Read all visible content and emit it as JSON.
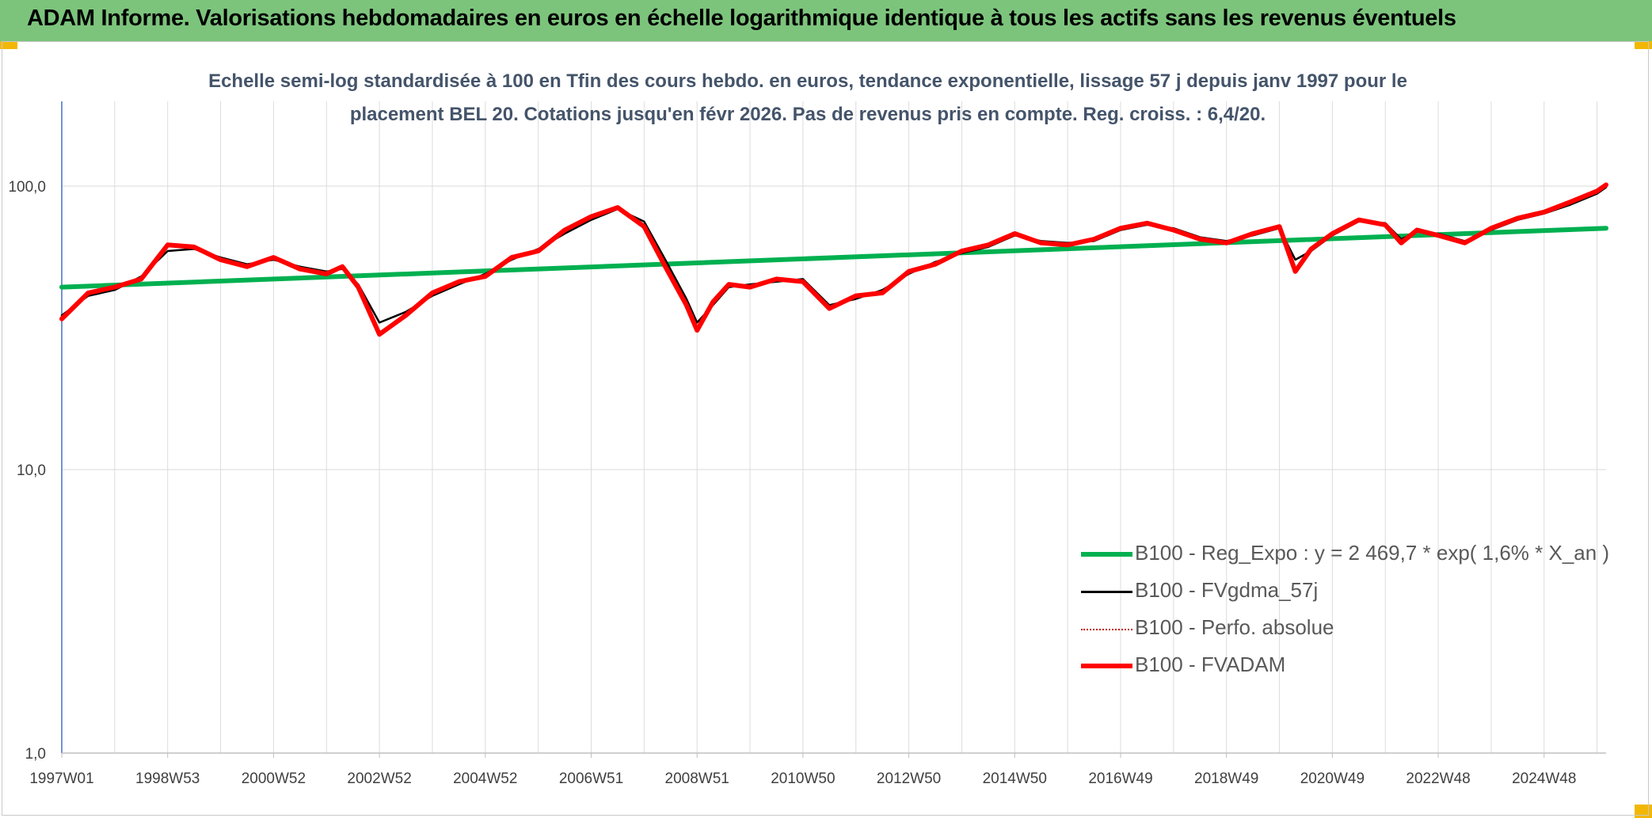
{
  "header": {
    "title": "ADAM Informe. Valorisations hebdomadaires en euros en échelle logarithmique identique à tous les actifs sans les revenus éventuels"
  },
  "chart_data": {
    "type": "line",
    "title_line1": "Echelle semi-log standardisée à 100 en Tfin des cours hebdo. en euros, tendance exponentielle, lissage 57 j depuis janv 1997 pour le",
    "title_line2": "placement BEL 20. Cotations jusqu'en févr 2026. Pas de revenus pris en compte. Reg. croiss. : 6,4/20.",
    "y_scale": "log",
    "ylim": [
      1,
      200
    ],
    "y_ticks": [
      {
        "value": 1,
        "label": "1,0"
      },
      {
        "value": 10,
        "label": "10,0"
      },
      {
        "value": 100,
        "label": "100,0"
      }
    ],
    "xlim": [
      1997.0,
      2026.17
    ],
    "x_ticks": [
      {
        "value": 1997.0,
        "label": "1997W01"
      },
      {
        "value": 1999.0,
        "label": "1998W53"
      },
      {
        "value": 2001.0,
        "label": "2000W52"
      },
      {
        "value": 2003.0,
        "label": "2002W52"
      },
      {
        "value": 2005.0,
        "label": "2004W52"
      },
      {
        "value": 2007.0,
        "label": "2006W51"
      },
      {
        "value": 2009.0,
        "label": "2008W51"
      },
      {
        "value": 2011.0,
        "label": "2010W50"
      },
      {
        "value": 2013.0,
        "label": "2012W50"
      },
      {
        "value": 2015.0,
        "label": "2014W50"
      },
      {
        "value": 2017.0,
        "label": "2016W49"
      },
      {
        "value": 2019.0,
        "label": "2018W49"
      },
      {
        "value": 2021.0,
        "label": "2020W49"
      },
      {
        "value": 2023.0,
        "label": "2022W48"
      },
      {
        "value": 2025.0,
        "label": "2024W48"
      }
    ],
    "grid": true,
    "legend_placement": "bottom-right",
    "series": [
      {
        "name": "B100 - Reg_Expo : y = 2 469,7 * exp( 1,6% *  X_an )",
        "color": "#00b050",
        "style": "solid-thick",
        "x": [
          1997.0,
          2026.17
        ],
        "y": [
          44,
          71
        ]
      },
      {
        "name": "B100 - FVgdma_57j",
        "color": "#000000",
        "style": "solid-thin",
        "x": [
          1997.0,
          1997.5,
          1998.0,
          1998.5,
          1999.0,
          1999.5,
          2000.0,
          2000.5,
          2001.0,
          2001.5,
          2002.0,
          2002.3,
          2002.6,
          2003.0,
          2003.5,
          2004.0,
          2004.5,
          2005.0,
          2005.5,
          2006.0,
          2006.5,
          2007.0,
          2007.5,
          2008.0,
          2008.4,
          2008.8,
          2009.0,
          2009.3,
          2009.6,
          2010.0,
          2010.5,
          2011.0,
          2011.5,
          2012.0,
          2012.5,
          2013.0,
          2013.5,
          2014.0,
          2014.5,
          2015.0,
          2015.5,
          2016.0,
          2016.5,
          2017.0,
          2017.5,
          2018.0,
          2018.5,
          2019.0,
          2019.5,
          2020.0,
          2020.3,
          2020.6,
          2021.0,
          2021.5,
          2022.0,
          2022.3,
          2022.6,
          2023.0,
          2023.5,
          2024.0,
          2024.5,
          2025.0,
          2025.5,
          2026.0,
          2026.17
        ],
        "y": [
          35,
          41,
          43,
          48,
          59,
          60,
          56,
          53,
          55,
          52,
          50,
          51,
          45,
          33,
          36,
          41,
          45,
          49,
          55,
          60,
          68,
          76,
          83,
          75,
          55,
          40,
          33,
          38,
          44,
          45,
          46,
          47,
          38,
          40,
          43,
          49,
          54,
          58,
          61,
          67,
          64,
          63,
          64,
          70,
          73,
          71,
          66,
          64,
          67,
          71,
          55,
          59,
          67,
          75,
          74,
          65,
          69,
          68,
          64,
          70,
          76,
          80,
          86,
          94,
          99
        ]
      },
      {
        "name": "B100 - Perfo. absolue",
        "color": "#c00000",
        "style": "dotted",
        "x": [
          1997.0,
          1997.5,
          1998.0,
          1998.5,
          1999.0,
          1999.5,
          2000.0,
          2000.5,
          2001.0,
          2001.5,
          2002.0,
          2002.3,
          2002.6,
          2003.0,
          2003.5,
          2004.0,
          2004.5,
          2005.0,
          2005.5,
          2006.0,
          2006.5,
          2007.0,
          2007.5,
          2008.0,
          2008.4,
          2008.8,
          2009.0,
          2009.3,
          2009.6,
          2010.0,
          2010.5,
          2011.0,
          2011.5,
          2012.0,
          2012.5,
          2013.0,
          2013.5,
          2014.0,
          2014.5,
          2015.0,
          2015.5,
          2016.0,
          2016.5,
          2017.0,
          2017.5,
          2018.0,
          2018.5,
          2019.0,
          2019.5,
          2020.0,
          2020.3,
          2020.6,
          2021.0,
          2021.5,
          2022.0,
          2022.3,
          2022.6,
          2023.0,
          2023.5,
          2024.0,
          2024.5,
          2025.0,
          2025.5,
          2026.0,
          2026.17
        ],
        "y": [
          34,
          42,
          44,
          47,
          62,
          61,
          55,
          52,
          56,
          51,
          49,
          52,
          44,
          30,
          35,
          42,
          46,
          48,
          56,
          59,
          70,
          78,
          84,
          72,
          52,
          38,
          31,
          39,
          45,
          44,
          47,
          46,
          37,
          41,
          42,
          50,
          53,
          59,
          62,
          68,
          63,
          62,
          65,
          71,
          74,
          70,
          65,
          63,
          68,
          72,
          50,
          60,
          68,
          76,
          73,
          63,
          70,
          67,
          63,
          71,
          77,
          81,
          88,
          96,
          101
        ]
      },
      {
        "name": "B100 - FVADAM",
        "color": "#ff0000",
        "style": "solid-thick",
        "x": [
          1997.0,
          1997.5,
          1998.0,
          1998.5,
          1999.0,
          1999.5,
          2000.0,
          2000.5,
          2001.0,
          2001.5,
          2002.0,
          2002.3,
          2002.6,
          2003.0,
          2003.5,
          2004.0,
          2004.5,
          2005.0,
          2005.5,
          2006.0,
          2006.5,
          2007.0,
          2007.5,
          2008.0,
          2008.4,
          2008.8,
          2009.0,
          2009.3,
          2009.6,
          2010.0,
          2010.5,
          2011.0,
          2011.5,
          2012.0,
          2012.5,
          2013.0,
          2013.5,
          2014.0,
          2014.5,
          2015.0,
          2015.5,
          2016.0,
          2016.5,
          2017.0,
          2017.5,
          2018.0,
          2018.5,
          2019.0,
          2019.5,
          2020.0,
          2020.3,
          2020.6,
          2021.0,
          2021.5,
          2022.0,
          2022.3,
          2022.6,
          2023.0,
          2023.5,
          2024.0,
          2024.5,
          2025.0,
          2025.5,
          2026.0,
          2026.17
        ],
        "y": [
          34,
          42,
          44,
          47,
          62,
          61,
          55,
          52,
          56,
          51,
          49,
          52,
          44,
          30,
          35,
          42,
          46,
          48,
          56,
          59,
          70,
          78,
          84,
          72,
          52,
          38,
          31,
          39,
          45,
          44,
          47,
          46,
          37,
          41,
          42,
          50,
          53,
          59,
          62,
          68,
          63,
          62,
          65,
          71,
          74,
          70,
          65,
          63,
          68,
          72,
          50,
          60,
          68,
          76,
          73,
          63,
          70,
          67,
          63,
          71,
          77,
          81,
          88,
          96,
          101
        ]
      }
    ]
  }
}
